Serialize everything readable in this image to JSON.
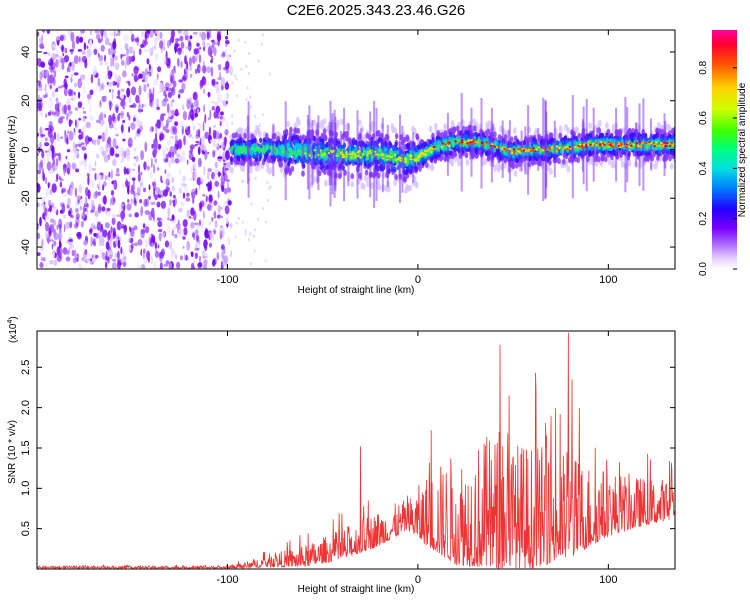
{
  "title": "C2E6.2025.343.23.46.G26",
  "chart_data": [
    {
      "type": "heatmap",
      "name": "spectrogram",
      "xlabel": "Height of straight line (km)",
      "ylabel": "Frequency (Hz)",
      "xlim": [
        -200,
        135
      ],
      "ylim": [
        -49,
        49
      ],
      "xticks": [
        -100,
        0,
        100
      ],
      "yticks": [
        -40,
        -20,
        0,
        20,
        40
      ],
      "colorbar": {
        "label": "Normalized spectral amplitude",
        "range": [
          0,
          0.95
        ],
        "ticks": [
          0.0,
          0.2,
          0.4,
          0.6,
          0.8
        ]
      },
      "noise_region_x": [
        -200,
        -98
      ],
      "center_track": [
        {
          "x": -98,
          "y": 0
        },
        {
          "x": -80,
          "y": 0
        },
        {
          "x": -60,
          "y": -1
        },
        {
          "x": -40,
          "y": -2
        },
        {
          "x": -20,
          "y": -2
        },
        {
          "x": -8,
          "y": -4
        },
        {
          "x": 0,
          "y": -3
        },
        {
          "x": 10,
          "y": 1
        },
        {
          "x": 20,
          "y": 3
        },
        {
          "x": 30,
          "y": 3
        },
        {
          "x": 38,
          "y": 2
        },
        {
          "x": 45,
          "y": 0
        },
        {
          "x": 50,
          "y": -1
        },
        {
          "x": 60,
          "y": 0
        },
        {
          "x": 70,
          "y": 0
        },
        {
          "x": 80,
          "y": 1
        },
        {
          "x": 90,
          "y": 2
        },
        {
          "x": 100,
          "y": 2
        },
        {
          "x": 110,
          "y": 2
        },
        {
          "x": 120,
          "y": 2
        },
        {
          "x": 135,
          "y": 2
        }
      ]
    },
    {
      "type": "line",
      "name": "snr",
      "xlabel": "Height of straight line (km)",
      "ylabel": "SNR (10 * v/v)",
      "yscale_label": "(x10",
      "yscale_exp": "4",
      "yscale_close": ")",
      "xlim": [
        -200,
        135
      ],
      "ylim": [
        0,
        2.95
      ],
      "xticks": [
        -100,
        0,
        100
      ],
      "yticks": [
        0.5,
        1.0,
        1.5,
        2.0,
        2.5
      ],
      "color": "#ee3333",
      "envelope": [
        {
          "x": -200,
          "base": 0.02,
          "amp": 0.02
        },
        {
          "x": -100,
          "base": 0.02,
          "amp": 0.02
        },
        {
          "x": -90,
          "base": 0.04,
          "amp": 0.06
        },
        {
          "x": -80,
          "base": 0.08,
          "amp": 0.12
        },
        {
          "x": -60,
          "base": 0.12,
          "amp": 0.2
        },
        {
          "x": -40,
          "base": 0.25,
          "amp": 0.3
        },
        {
          "x": -20,
          "base": 0.45,
          "amp": 0.35
        },
        {
          "x": -5,
          "base": 0.62,
          "amp": 0.3
        },
        {
          "x": 5,
          "base": 0.6,
          "amp": 0.7
        },
        {
          "x": 20,
          "base": 0.55,
          "amp": 1.1
        },
        {
          "x": 40,
          "base": 0.6,
          "amp": 1.3
        },
        {
          "x": 60,
          "base": 0.55,
          "amp": 1.2
        },
        {
          "x": 80,
          "base": 0.6,
          "amp": 1.0
        },
        {
          "x": 100,
          "base": 0.7,
          "amp": 0.65
        },
        {
          "x": 120,
          "base": 0.75,
          "amp": 0.45
        },
        {
          "x": 135,
          "base": 0.8,
          "amp": 0.4
        }
      ],
      "peaks": [
        {
          "x": -30,
          "y": 1.52
        },
        {
          "x": 43,
          "y": 2.78
        },
        {
          "x": 48,
          "y": 2.15
        },
        {
          "x": 62,
          "y": 2.2
        },
        {
          "x": 79,
          "y": 2.93
        },
        {
          "x": 81,
          "y": 2.35
        },
        {
          "x": 70,
          "y": 1.9
        }
      ]
    }
  ]
}
